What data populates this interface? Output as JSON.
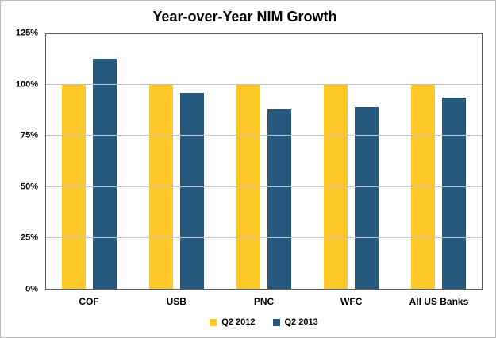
{
  "chart_data": {
    "type": "bar",
    "title": "Year-over-Year NIM Growth",
    "categories": [
      "COF",
      "USB",
      "PNC",
      "WFC",
      "All US Banks"
    ],
    "series": [
      {
        "name": "Q2 2012",
        "color": "#FFC82A",
        "values": [
          100,
          100,
          100,
          100,
          100
        ]
      },
      {
        "name": "Q2 2013",
        "color": "#27597F",
        "values": [
          113,
          96,
          88,
          89,
          94
        ]
      }
    ],
    "xlabel": "",
    "ylabel": "",
    "ylim": [
      0,
      125
    ],
    "yticks": [
      "0%",
      "25%",
      "50%",
      "75%",
      "100%",
      "125%"
    ],
    "ytick_values": [
      0,
      25,
      50,
      75,
      100,
      125
    ],
    "grid": true,
    "legend_position": "bottom",
    "colors": {
      "gridline": "#c6c6c6",
      "plot_border": "#595959",
      "background": "#ffffff"
    }
  }
}
